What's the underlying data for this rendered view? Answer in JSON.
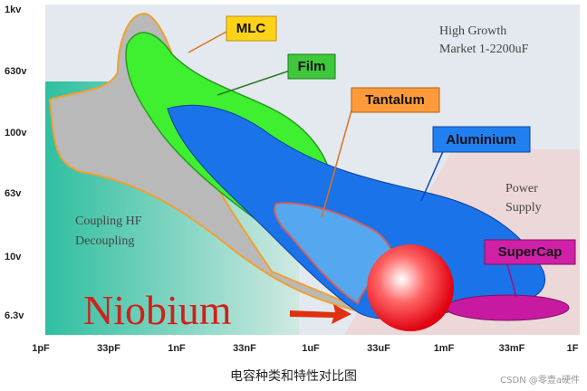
{
  "y_axis": {
    "labels": [
      "1kv",
      "630v",
      "100v",
      "63v",
      "10v",
      "6.3v"
    ]
  },
  "x_axis": {
    "labels": [
      "1pF",
      "33pF",
      "1nF",
      "33nF",
      "1uF",
      "33uF",
      "1mF",
      "33mF",
      "1F"
    ]
  },
  "regions": {
    "mlc": "MLC",
    "film": "Film",
    "tantalum": "Tantalum",
    "aluminium": "Aluminium",
    "supercap": "SuperCap",
    "niobium": "Niobium"
  },
  "notes": {
    "high_growth": [
      "High Growth",
      "Market 1-2200uF"
    ],
    "power_supply": [
      "Power",
      "Supply"
    ],
    "coupling": [
      "Coupling HF",
      "Decoupling"
    ]
  },
  "caption": "电容种类和特性对比图",
  "watermark": "CSDN @零壹a硬件"
}
